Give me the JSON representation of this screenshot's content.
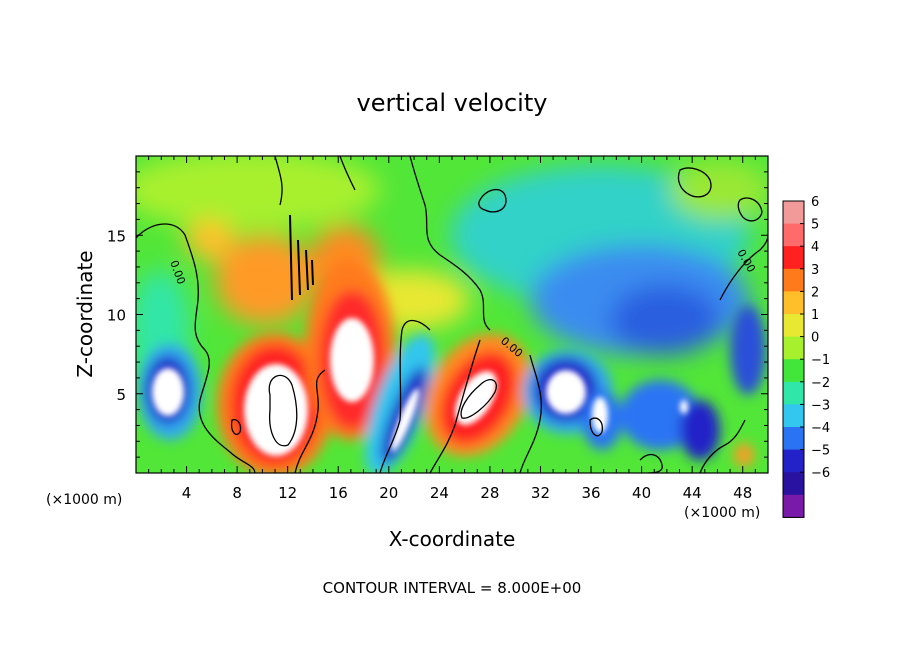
{
  "chart_data": {
    "type": "heatmap",
    "title": "vertical velocity",
    "xlabel": "X-coordinate",
    "ylabel": "Z-coordinate",
    "x_unit_left": "(×1000 m)",
    "x_unit_right": "(×1000 m)",
    "footer": "CONTOUR INTERVAL = 8.000E+00",
    "contour_label": "0.00",
    "xlim": [
      0,
      50
    ],
    "ylim": [
      0,
      20
    ],
    "x_ticks": [
      "4",
      "8",
      "12",
      "16",
      "20",
      "24",
      "28",
      "32",
      "36",
      "40",
      "44",
      "48"
    ],
    "y_ticks": [
      "5",
      "10",
      "15"
    ],
    "colorbar": {
      "labels": [
        "6",
        "5",
        "4",
        "3",
        "2",
        "1",
        "0",
        "−1",
        "−2",
        "−3",
        "−4",
        "−5",
        "−6"
      ],
      "colors": [
        "#f29a9a",
        "#ff6a6a",
        "#ff2020",
        "#ff7a1a",
        "#ffbf2a",
        "#e8e832",
        "#a6f02e",
        "#42e63a",
        "#30e6a8",
        "#33c6ef",
        "#2a74f4",
        "#2222c8",
        "#2a12a0",
        "#7a1aa8"
      ]
    },
    "features": [
      {
        "x": 3,
        "z": 4.5,
        "w": -7
      },
      {
        "x": 10.5,
        "z": 4.8,
        "w": 8
      },
      {
        "x": 16.5,
        "z": 6.5,
        "w": 7
      },
      {
        "x": 21,
        "z": 3.5,
        "w": -6
      },
      {
        "x": 27,
        "z": 5,
        "w": 7
      },
      {
        "x": 33.5,
        "z": 5,
        "w": -7
      },
      {
        "x": 36.5,
        "z": 3.5,
        "w": -6
      },
      {
        "x": 42,
        "z": 3.5,
        "w": -4
      },
      {
        "x": 46,
        "z": 10,
        "w": -3
      },
      {
        "x": 11,
        "z": 12,
        "w": 3
      },
      {
        "x": 36,
        "z": 13,
        "w": -2
      }
    ]
  }
}
